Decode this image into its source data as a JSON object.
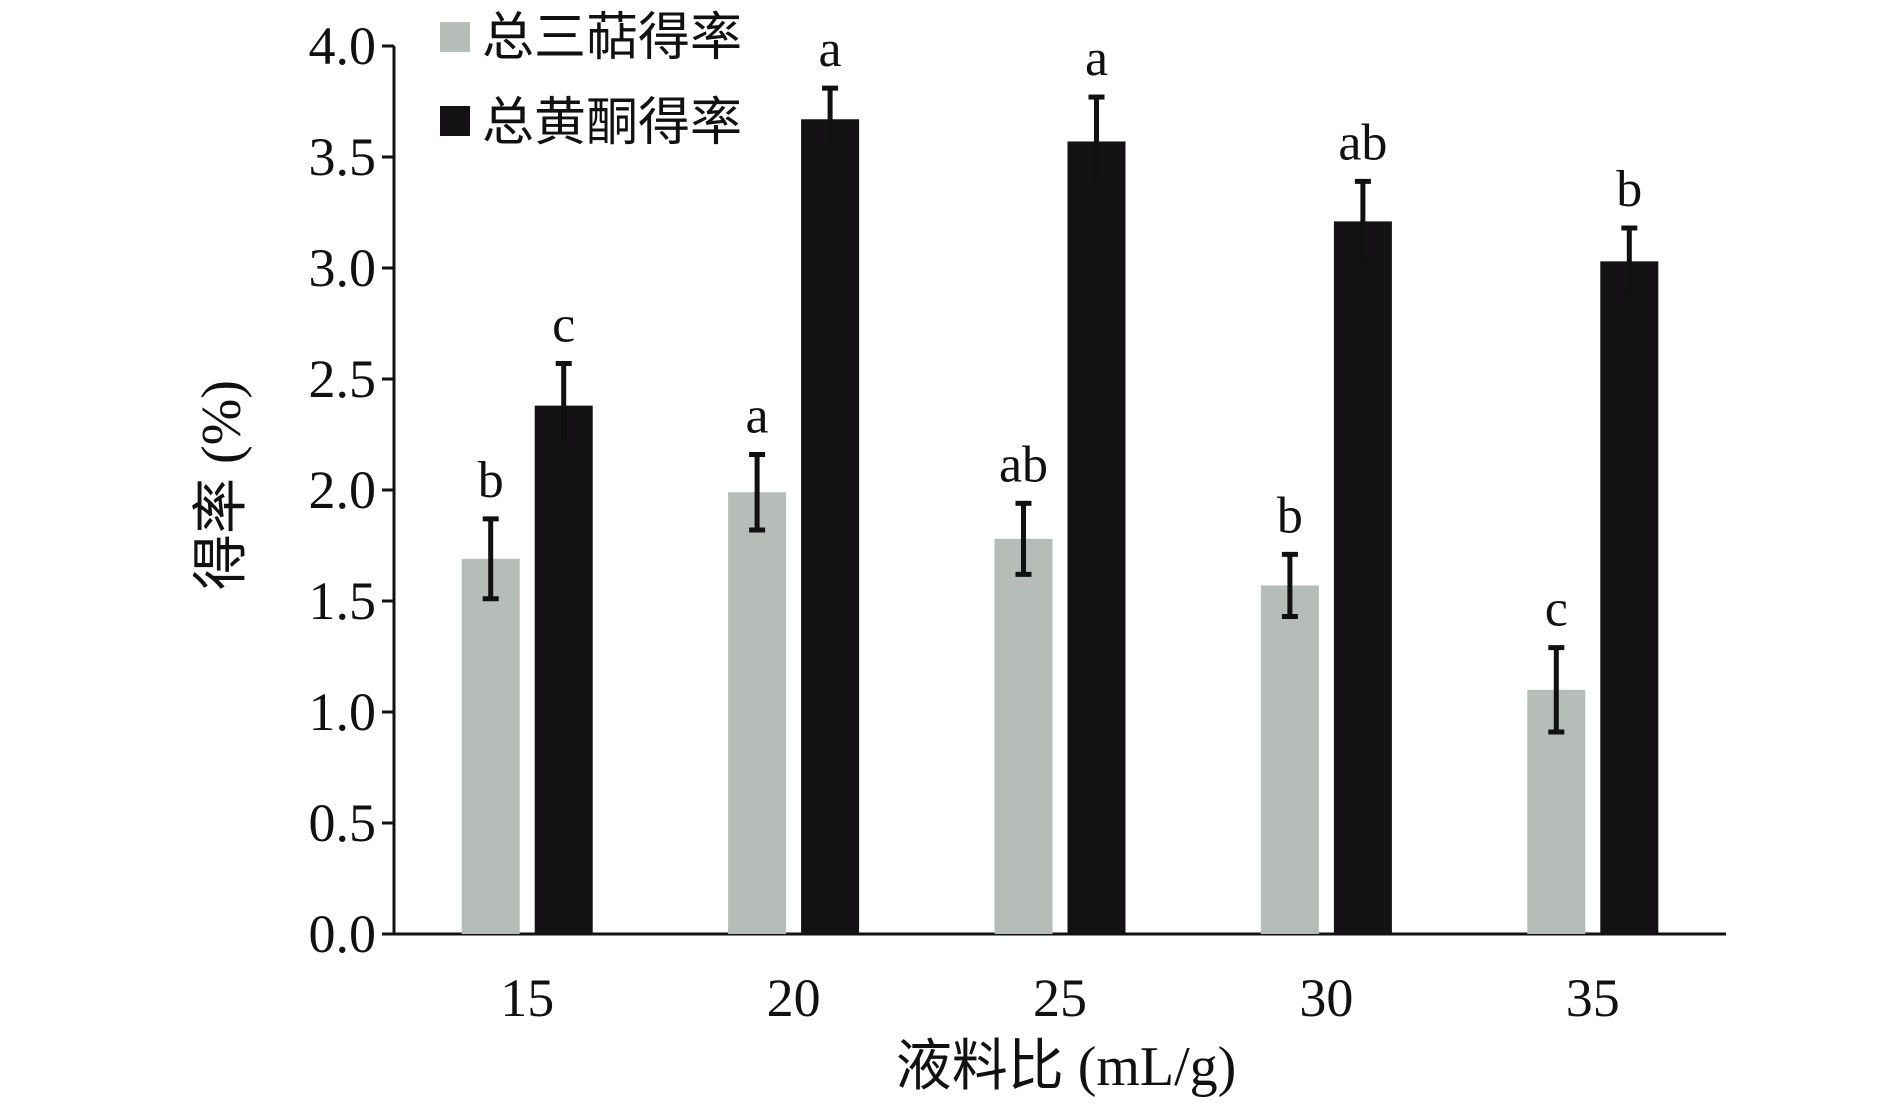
{
  "chart_data": {
    "type": "bar",
    "categories": [
      "15",
      "20",
      "25",
      "30",
      "35"
    ],
    "xlabel": "液料比 (mL/g)",
    "ylabel": "得率 (%)",
    "ylim": [
      0,
      4
    ],
    "yticks": [
      "0.0",
      "0.5",
      "1.0",
      "1.5",
      "2.0",
      "2.5",
      "3.0",
      "3.5",
      "4.0"
    ],
    "grid": false,
    "legend_position": "top-left",
    "series": [
      {
        "name": "总三萜得率",
        "color": "#b6bcb8",
        "values": [
          1.69,
          1.99,
          1.78,
          1.57,
          1.1
        ],
        "errors": [
          0.18,
          0.17,
          0.16,
          0.14,
          0.19
        ],
        "significance": [
          "b",
          "a",
          "ab",
          "b",
          "c"
        ]
      },
      {
        "name": "总黄酮得率",
        "color": "#141214",
        "values": [
          2.38,
          3.67,
          3.57,
          3.21,
          3.03
        ],
        "errors": [
          0.19,
          0.14,
          0.2,
          0.18,
          0.15
        ],
        "significance": [
          "c",
          "a",
          "a",
          "ab",
          "b"
        ]
      }
    ]
  }
}
